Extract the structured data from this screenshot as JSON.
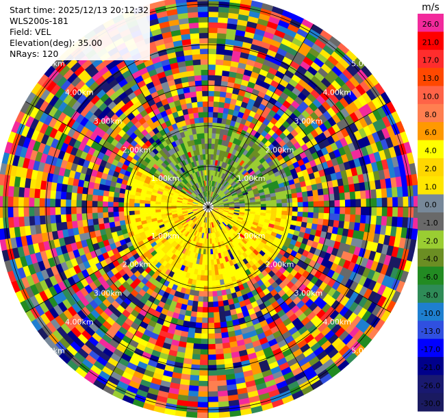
{
  "header": {
    "start_time": "Start time: 2025/12/13 20:12:32",
    "instrument": "WLS200s-181",
    "field": "Field: VEL",
    "elevation": "Elevation(deg): 35.00",
    "nrays": "NRays: 120"
  },
  "chart_data": {
    "type": "ppi",
    "field": "VEL",
    "units": "m/s",
    "elevation_deg": 35.0,
    "n_rays": 120,
    "range_rings_km": [
      1,
      2,
      3,
      4,
      5
    ],
    "ring_labels": [
      "1.00km",
      "2.00km",
      "3.00km",
      "4.00km",
      "5.00km"
    ],
    "max_range_km": 5.2,
    "colorbar": {
      "unit_label": "m/s",
      "levels": [
        26.0,
        21.0,
        17.0,
        13.0,
        10.0,
        8.0,
        6.0,
        4.0,
        2.0,
        1.0,
        0.0,
        -1.0,
        -2.0,
        -4.0,
        -6.0,
        -8.0,
        -10.0,
        -13.0,
        -17.0,
        -21.0,
        -26.0,
        -30.0
      ],
      "tick_labels": [
        "26.0",
        "21.0",
        "17.0",
        "13.0",
        "10.0",
        "8.0",
        "6.0",
        "4.0",
        "2.0",
        "1.0",
        "0.0",
        "-1.0",
        "-2.0",
        "-4.0",
        "-6.0",
        "-8.0",
        "-10.0",
        "-13.0",
        "-17.0",
        "-21.0",
        "-26.0",
        "-30.0"
      ],
      "colors": [
        "#f22a9c",
        "#ff0000",
        "#ff2d2d",
        "#ff4800",
        "#ff6347",
        "#ff7f50",
        "#ff9900",
        "#ffff00",
        "#ffd700",
        "#ffe600",
        "#778899",
        "#696969",
        "#9acd32",
        "#6b8e23",
        "#228b22",
        "#2e8b57",
        "#1e7fd0",
        "#3050e0",
        "#0000ff",
        "#00008b",
        "#191970",
        "#1a1a60"
      ]
    },
    "inner_pattern": {
      "yellow_sector_deg": [
        90,
        300
      ],
      "green_sector_deg": [
        300,
        450
      ],
      "inner_radius_km": 2.2
    },
    "grid": true
  }
}
